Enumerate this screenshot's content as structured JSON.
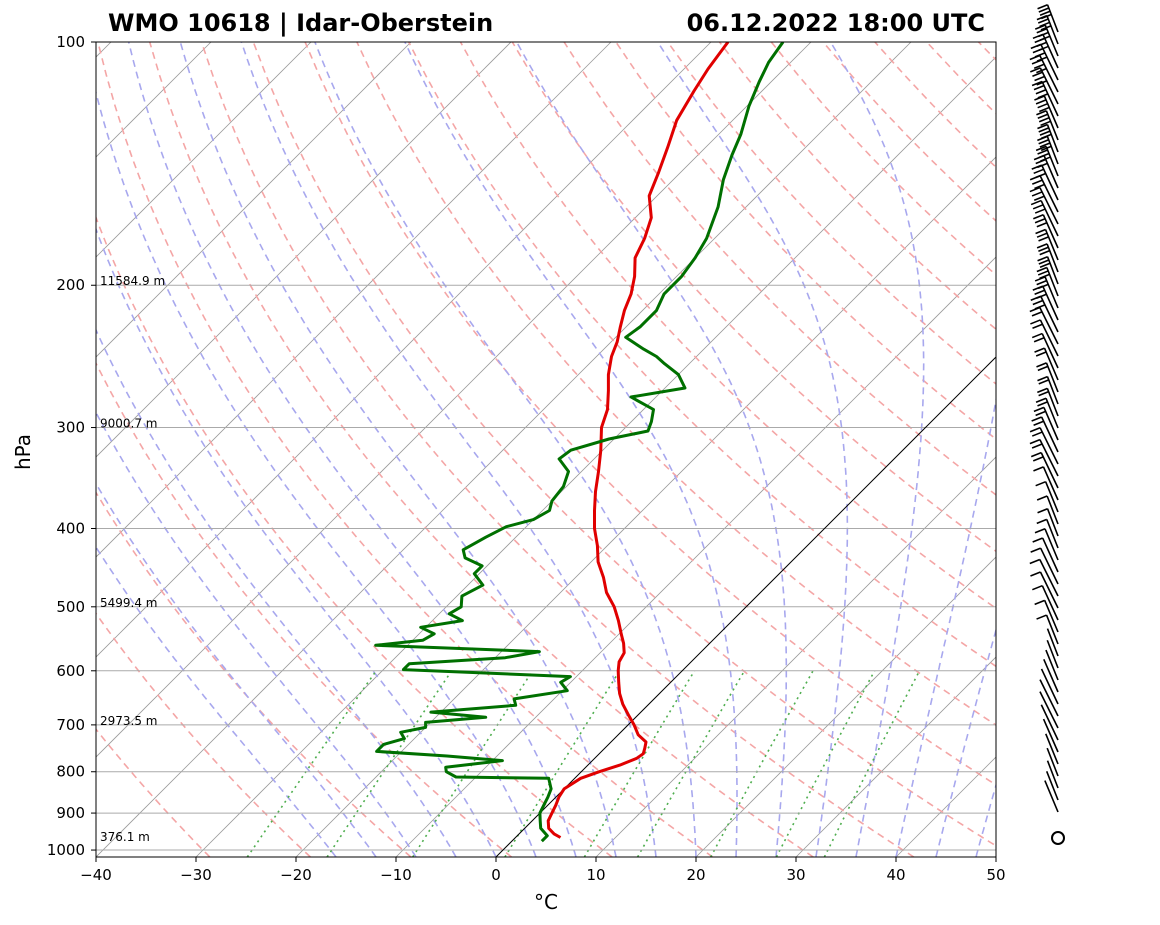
{
  "chart_data": {
    "type": "line",
    "title_left": "WMO 10618 | Idar-Oberstein",
    "title_right": "06.12.2022 18:00 UTC",
    "xlabel": "°C",
    "ylabel": "hPa",
    "xlim": [
      -40,
      50
    ],
    "ylim": [
      1000,
      100
    ],
    "y_scale": "log",
    "skew": "45-degree skew-T",
    "grid": true,
    "x_ticks": [
      "−40",
      "−30",
      "−20",
      "−10",
      "0",
      "10",
      "20",
      "30",
      "40",
      "50"
    ],
    "y_ticks": [
      {
        "p": 100,
        "label": "100"
      },
      {
        "p": 200,
        "label": "200"
      },
      {
        "p": 300,
        "label": "300"
      },
      {
        "p": 400,
        "label": "400"
      },
      {
        "p": 500,
        "label": "500"
      },
      {
        "p": 600,
        "label": "600"
      },
      {
        "p": 700,
        "label": "700"
      },
      {
        "p": 800,
        "label": "800"
      },
      {
        "p": 900,
        "label": "900"
      },
      {
        "p": 1000,
        "label": "1000"
      }
    ],
    "height_labels": [
      {
        "p": 200,
        "label": "11584.9 m"
      },
      {
        "p": 300,
        "label": "9000.7 m"
      },
      {
        "p": 500,
        "label": "5499.4 m"
      },
      {
        "p": 700,
        "label": "2973.5 m"
      },
      {
        "p": 975,
        "label": "376.1 m"
      }
    ],
    "colors": {
      "temperature": "#e00000",
      "dewpoint": "#007000",
      "dry_adiabat": "#f4a6a6",
      "moist_adiabat": "#a8a8ee",
      "mixing_ratio": "#4fae4f",
      "isotherm": "#9a9a9a",
      "isobar": "#aaaaaa",
      "zero_isotherm": "#000000"
    },
    "series": [
      {
        "name": "temperature",
        "points": [
          [
            965,
            4.5
          ],
          [
            955,
            3.5
          ],
          [
            940,
            2.4
          ],
          [
            920,
            1.6
          ],
          [
            900,
            1.2
          ],
          [
            880,
            0.8
          ],
          [
            860,
            0.3
          ],
          [
            840,
            0
          ],
          [
            815,
            0.6
          ],
          [
            800,
            1.8
          ],
          [
            785,
            3.2
          ],
          [
            770,
            4.2
          ],
          [
            760,
            4.4
          ],
          [
            748,
            4.0
          ],
          [
            735,
            3.5
          ],
          [
            720,
            2.0
          ],
          [
            700,
            0.6
          ],
          [
            680,
            -1.0
          ],
          [
            660,
            -2.6
          ],
          [
            640,
            -4.0
          ],
          [
            620,
            -5.2
          ],
          [
            600,
            -6.4
          ],
          [
            585,
            -7.2
          ],
          [
            570,
            -7.6
          ],
          [
            555,
            -8.6
          ],
          [
            540,
            -9.8
          ],
          [
            520,
            -11.4
          ],
          [
            500,
            -13.2
          ],
          [
            480,
            -15.4
          ],
          [
            460,
            -17.2
          ],
          [
            440,
            -19.3
          ],
          [
            420,
            -21.0
          ],
          [
            400,
            -23.0
          ],
          [
            380,
            -24.8
          ],
          [
            360,
            -26.6
          ],
          [
            340,
            -28.3
          ],
          [
            320,
            -30.2
          ],
          [
            300,
            -32.4
          ],
          [
            285,
            -33.6
          ],
          [
            270,
            -35.4
          ],
          [
            258,
            -37.0
          ],
          [
            245,
            -38.5
          ],
          [
            235,
            -39.4
          ],
          [
            225,
            -40.6
          ],
          [
            215,
            -41.8
          ],
          [
            205,
            -42.8
          ],
          [
            195,
            -44.2
          ],
          [
            185,
            -46.0
          ],
          [
            175,
            -47.0
          ],
          [
            165,
            -48.4
          ],
          [
            155,
            -50.8
          ],
          [
            145,
            -52.2
          ],
          [
            135,
            -53.8
          ],
          [
            125,
            -55.6
          ],
          [
            115,
            -56.8
          ],
          [
            108,
            -57.6
          ],
          [
            100,
            -58.3
          ]
        ]
      },
      {
        "name": "dewpoint",
        "points": [
          [
            975,
            3.0
          ],
          [
            960,
            3.0
          ],
          [
            940,
            1.6
          ],
          [
            920,
            0.8
          ],
          [
            900,
            0.0
          ],
          [
            880,
            -0.4
          ],
          [
            860,
            -0.8
          ],
          [
            840,
            -1.3
          ],
          [
            815,
            -2.6
          ],
          [
            812,
            -12.0
          ],
          [
            800,
            -13.5
          ],
          [
            790,
            -14.0
          ],
          [
            775,
            -9.0
          ],
          [
            765,
            -15.0
          ],
          [
            755,
            -22.5
          ],
          [
            740,
            -22.5
          ],
          [
            728,
            -21.0
          ],
          [
            715,
            -22.0
          ],
          [
            705,
            -20.0
          ],
          [
            695,
            -20.5
          ],
          [
            685,
            -15.0
          ],
          [
            675,
            -21.0
          ],
          [
            662,
            -13.2
          ],
          [
            650,
            -14.0
          ],
          [
            635,
            -9.5
          ],
          [
            620,
            -11.0
          ],
          [
            610,
            -10.6
          ],
          [
            598,
            -28.0
          ],
          [
            588,
            -28.0
          ],
          [
            578,
            -19.0
          ],
          [
            568,
            -16.2
          ],
          [
            558,
            -33.2
          ],
          [
            550,
            -29.0
          ],
          [
            540,
            -28.5
          ],
          [
            530,
            -30.5
          ],
          [
            520,
            -27.0
          ],
          [
            510,
            -29.0
          ],
          [
            500,
            -28.5
          ],
          [
            485,
            -29.5
          ],
          [
            470,
            -28.5
          ],
          [
            455,
            -30.5
          ],
          [
            445,
            -30.5
          ],
          [
            435,
            -33.0
          ],
          [
            425,
            -34.0
          ],
          [
            410,
            -33.0
          ],
          [
            398,
            -32.0
          ],
          [
            390,
            -30.0
          ],
          [
            380,
            -29.3
          ],
          [
            370,
            -30.0
          ],
          [
            355,
            -30.3
          ],
          [
            340,
            -31.3
          ],
          [
            328,
            -33.5
          ],
          [
            320,
            -33.2
          ],
          [
            310,
            -30.5
          ],
          [
            303,
            -27.4
          ],
          [
            295,
            -28.0
          ],
          [
            285,
            -29.0
          ],
          [
            275,
            -32.5
          ],
          [
            268,
            -28.0
          ],
          [
            258,
            -30.0
          ],
          [
            250,
            -32.5
          ],
          [
            245,
            -34.0
          ],
          [
            240,
            -36.0
          ],
          [
            232,
            -39.0
          ],
          [
            225,
            -38.6
          ],
          [
            215,
            -38.6
          ],
          [
            205,
            -39.5
          ],
          [
            195,
            -39.5
          ],
          [
            185,
            -40.0
          ],
          [
            175,
            -40.8
          ],
          [
            160,
            -42.8
          ],
          [
            148,
            -45.0
          ],
          [
            138,
            -46.6
          ],
          [
            130,
            -47.8
          ],
          [
            120,
            -49.8
          ],
          [
            112,
            -51.2
          ],
          [
            106,
            -52.2
          ],
          [
            100,
            -52.8
          ]
        ]
      }
    ],
    "wind_barbs_note": "column of wind barbs along right side, increasing in strength aloft; calm circle at surface"
  }
}
